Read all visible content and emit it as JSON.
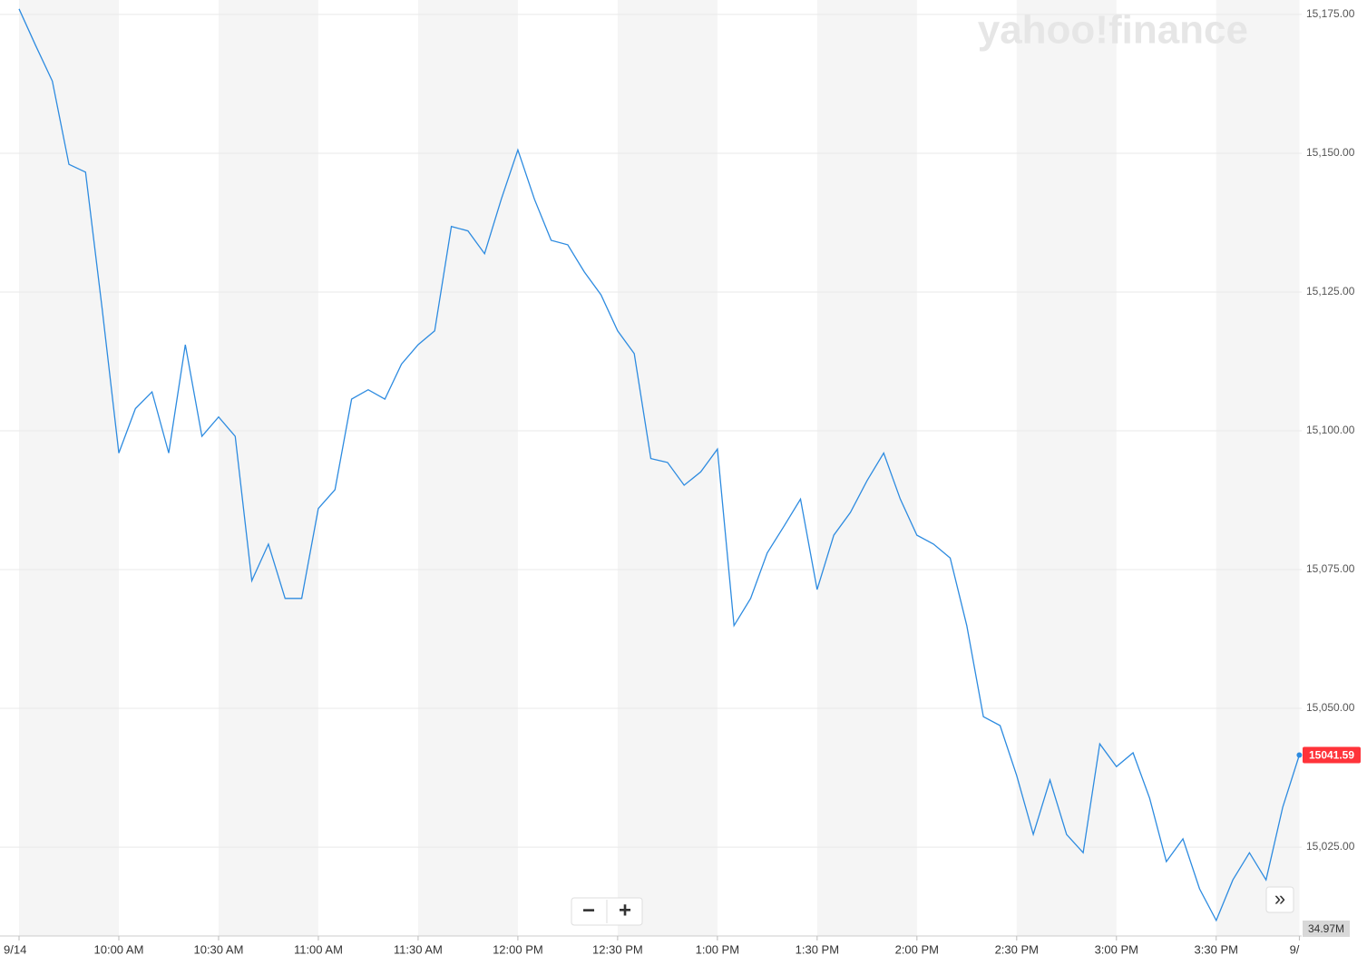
{
  "chart_data": {
    "type": "line",
    "logo": "yahoo!finance",
    "color": "#2d8be0",
    "categories": [
      "9/14",
      null,
      null,
      null,
      null,
      null,
      "10:00 AM",
      null,
      null,
      null,
      null,
      null,
      "10:30 AM",
      null,
      null,
      null,
      null,
      null,
      "11:00 AM",
      null,
      null,
      null,
      null,
      null,
      "11:30 AM",
      null,
      null,
      null,
      null,
      null,
      "12:00 PM",
      null,
      null,
      null,
      null,
      null,
      "12:30 PM",
      null,
      null,
      null,
      null,
      null,
      "1:00 PM",
      null,
      null,
      null,
      null,
      null,
      "1:30 PM",
      null,
      null,
      null,
      null,
      null,
      "2:00 PM",
      null,
      null,
      null,
      null,
      null,
      "2:30 PM",
      null,
      null,
      null,
      null,
      null,
      "3:00 PM",
      null,
      null,
      null,
      null,
      null,
      "3:30 PM",
      null,
      null,
      null,
      null,
      "9/"
    ],
    "values": [
      15176,
      15169.4,
      15163,
      15148,
      15146.6,
      15122,
      15096,
      15104,
      15107,
      15096,
      15115.5,
      15099,
      15102.5,
      15099,
      15073,
      15079.6,
      15069.8,
      15069.8,
      15086,
      15089.4,
      15105.7,
      15107.4,
      15105.7,
      15112,
      15115.5,
      15118,
      15136.8,
      15136,
      15131.9,
      15141.7,
      15150.6,
      15141.7,
      15134.3,
      15133.5,
      15128.6,
      15124.5,
      15118,
      15113.9,
      15095,
      15094.3,
      15090.2,
      15092.6,
      15096.7,
      15064.9,
      15069.8,
      15078,
      15082.8,
      15087.7,
      15071.4,
      15081.2,
      15085.3,
      15091,
      15096,
      15087.7,
      15081.2,
      15079.6,
      15077.1,
      15064.9,
      15048.5,
      15046.9,
      15037.9,
      15027.3,
      15037.1,
      15027.3,
      15024,
      15043.6,
      15039.5,
      15042,
      15033.8,
      15022.4,
      15026.5,
      15017.5,
      15011.8,
      15019.1,
      15024,
      15019.1,
      15032.2,
      15041.59
    ],
    "ylim": [
      15009,
      15177.6
    ],
    "yticks": [
      {
        "value": 15025,
        "label": "15,025.00"
      },
      {
        "value": 15050,
        "label": "15,050.00"
      },
      {
        "value": 15075,
        "label": "15,075.00"
      },
      {
        "value": 15100,
        "label": "15,100.00"
      },
      {
        "value": 15125,
        "label": "15,125.00"
      },
      {
        "value": 15150,
        "label": "15,150.00"
      },
      {
        "value": 15175,
        "label": "15,175.00"
      }
    ],
    "grid": true,
    "volume_label": "34.97M",
    "controls": [
      "−",
      "+",
      "»"
    ]
  }
}
